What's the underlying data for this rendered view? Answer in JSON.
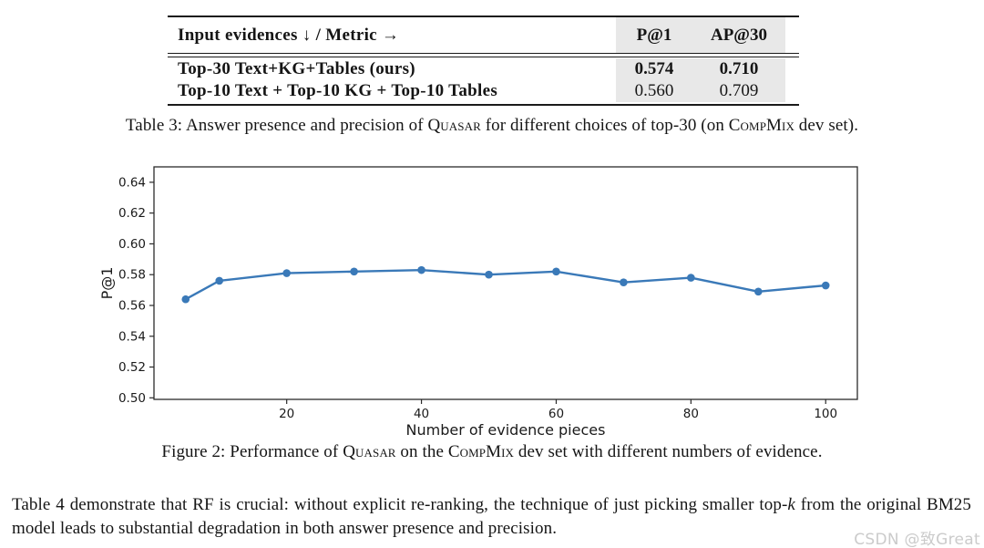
{
  "table3": {
    "header": {
      "label": "Input evidences ↓ / Metric →",
      "metrics": [
        "P@1",
        "AP@30"
      ]
    },
    "rows": [
      {
        "label": "Top-30 Text+KG+Tables (ours)",
        "values": [
          "0.574",
          "0.710"
        ],
        "values_bold": true
      },
      {
        "label": "Top-10 Text + Top-10 KG + Top-10 Tables",
        "values": [
          "0.560",
          "0.709"
        ],
        "values_bold": false
      }
    ],
    "shade_color": "#e8e8e8",
    "caption_parts": [
      {
        "t": "Table 3: Answer presence and precision of "
      },
      {
        "t": "Quasar",
        "v": "sc"
      },
      {
        "t": " for different choices of top-30 (on "
      },
      {
        "t": "CompMix",
        "v": "sc"
      },
      {
        "t": " dev set)."
      }
    ]
  },
  "chart_data": {
    "type": "line",
    "title": "",
    "xlabel": "Number of evidence pieces",
    "ylabel": "P@1",
    "x": [
      5,
      10,
      20,
      30,
      40,
      50,
      60,
      70,
      80,
      90,
      100
    ],
    "values": [
      0.564,
      0.576,
      0.581,
      0.582,
      0.583,
      0.58,
      0.582,
      0.575,
      0.578,
      0.569,
      0.573
    ],
    "xlim": [
      0.3,
      104.7
    ],
    "ylim": [
      0.499,
      0.65
    ],
    "xticks": [
      20,
      40,
      60,
      80,
      100
    ],
    "yticks": [
      0.5,
      0.52,
      0.54,
      0.56,
      0.58,
      0.6,
      0.62,
      0.64
    ],
    "grid": false,
    "legend": "none",
    "line_color": "#3a79b8",
    "marker": "circle",
    "spine_color": "#2b2b2b"
  },
  "figure2": {
    "caption_parts": [
      {
        "t": "Figure 2: Performance of "
      },
      {
        "t": "Quasar",
        "v": "sc"
      },
      {
        "t": " on the "
      },
      {
        "t": "CompMix",
        "v": "sc"
      },
      {
        "t": " dev set with different numbers of evidence."
      }
    ]
  },
  "paragraph": {
    "parts": [
      {
        "t": "Table 4 demonstrate that RF is crucial: without explicit re-ranking, the technique of just picking smaller top-"
      },
      {
        "t": "k",
        "v": "i"
      },
      {
        "t": " from the original BM25 model leads to substantial degradation in both answer presence and precision."
      }
    ]
  },
  "watermark": {
    "text": "CSDN @致Great",
    "color": "#cbcbcb"
  }
}
